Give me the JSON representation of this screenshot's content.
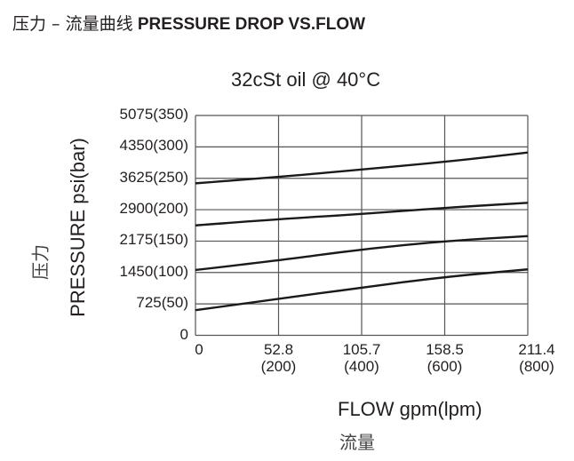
{
  "page": {
    "title_cn": "压力 – 流量曲线",
    "title_en": "PRESSURE DROP VS.FLOW"
  },
  "chart": {
    "title": "32cSt  oil @ 40°C",
    "y_title": "PRESSURE psi(bar)",
    "y_title_cn": "压力",
    "x_title": "FLOW gpm(lpm)",
    "x_title_cn": "流量",
    "y_ticks": [
      "0",
      "725(50)",
      "1450(100)",
      "2175(150)",
      "2900(200)",
      "3625(250)",
      "4350(300)",
      "5075(350)"
    ],
    "x_ticks": [
      {
        "top": "0",
        "bottom": ""
      },
      {
        "top": "52.8",
        "bottom": "(200)"
      },
      {
        "top": "105.7",
        "bottom": "(400)"
      },
      {
        "top": "158.5",
        "bottom": "(600)"
      },
      {
        "top": "211.4",
        "bottom": "(800)"
      }
    ]
  },
  "chart_data": {
    "type": "line",
    "title": "32cSt oil @ 40°C",
    "xlabel": "FLOW gpm(lpm)",
    "ylabel": "PRESSURE psi(bar)",
    "x": [
      0,
      200,
      400,
      600,
      800
    ],
    "x_gpm": [
      0,
      52.8,
      105.7,
      158.5,
      211.4
    ],
    "x_unit": "lpm",
    "y_unit": "bar",
    "xlim": [
      0,
      800
    ],
    "ylim": [
      0,
      350
    ],
    "grid": true,
    "x_tick_labels": [
      "0",
      "52.8 (200)",
      "105.7 (400)",
      "158.5 (600)",
      "211.4 (800)"
    ],
    "y_tick_labels": [
      "0",
      "725(50)",
      "1450(100)",
      "2175(150)",
      "2900(200)",
      "3625(250)",
      "4350(300)",
      "5075(350)"
    ],
    "series": [
      {
        "name": "curve-1",
        "values": [
          242,
          252,
          264,
          276,
          291
        ]
      },
      {
        "name": "curve-2",
        "values": [
          175,
          185,
          193,
          203,
          211
        ]
      },
      {
        "name": "curve-3",
        "values": [
          104,
          119,
          137,
          150,
          158
        ]
      },
      {
        "name": "curve-4",
        "values": [
          40,
          58,
          76,
          93,
          105
        ]
      }
    ],
    "legend": "none"
  },
  "colors": {
    "text": "#231f20",
    "grid": "#555555",
    "curve": "#1a1a1a"
  }
}
